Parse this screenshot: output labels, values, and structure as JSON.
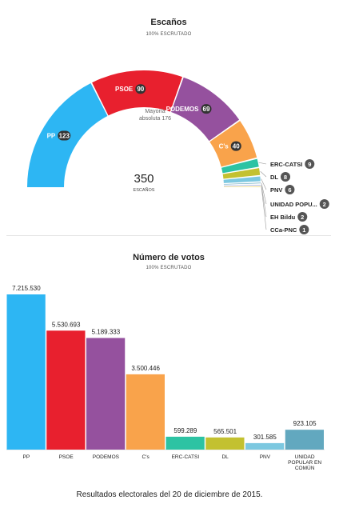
{
  "colors": {
    "PP": "#2db6f3",
    "PSOE": "#e8202e",
    "PODEMOS": "#95519e",
    "Cs": "#f9a34b",
    "ERC-CATSI": "#2dc3a3",
    "DL": "#c3c130",
    "PNV": "#7cc8e0",
    "UNIDAD POPULAR": "#62a8bf",
    "EH Bildu": "#9aa8d4",
    "CCa-PNC": "#e6c433",
    "badge": "#333333"
  },
  "chart_data": [
    {
      "type": "pie",
      "subtype": "parliament-hemicycle",
      "title": "Escaños",
      "subtitle": "100% ESCRUTADO",
      "center_value": "350",
      "center_label": "ESCAÑOS",
      "majority_label": [
        "Mayoría",
        "absoluta 176"
      ],
      "slices": [
        {
          "label": "PP",
          "value": 123,
          "color_key": "PP"
        },
        {
          "label": "PSOE",
          "value": 90,
          "color_key": "PSOE"
        },
        {
          "label": "PODEMOS",
          "value": 69,
          "color_key": "PODEMOS"
        },
        {
          "label": "C's",
          "value": 40,
          "color_key": "Cs"
        },
        {
          "label": "ERC-CATSI",
          "value": 9,
          "color_key": "ERC-CATSI"
        },
        {
          "label": "DL",
          "value": 8,
          "color_key": "DL"
        },
        {
          "label": "PNV",
          "value": 6,
          "color_key": "PNV"
        },
        {
          "label": "UNIDAD POPU...",
          "value": 2,
          "color_key": "UNIDAD POPULAR"
        },
        {
          "label": "EH Bildu",
          "value": 2,
          "color_key": "EH Bildu"
        },
        {
          "label": "CCa-PNC",
          "value": 1,
          "color_key": "CCa-PNC"
        }
      ]
    },
    {
      "type": "bar",
      "title": "Número de votos",
      "subtitle": "100% ESCRUTADO",
      "categories": [
        "PP",
        "PSOE",
        "PODEMOS",
        "C's",
        "ERC-CATSI",
        "DL",
        "PNV",
        "UNIDAD POPULAR EN COMÚN"
      ],
      "category_lines": [
        [
          "PP"
        ],
        [
          "PSOE"
        ],
        [
          "PODEMOS"
        ],
        [
          "C's"
        ],
        [
          "ERC-CATSI"
        ],
        [
          "DL"
        ],
        [
          "PNV"
        ],
        [
          "UNIDAD",
          "POPULAR EN",
          "COMÚN"
        ]
      ],
      "color_keys": [
        "PP",
        "PSOE",
        "PODEMOS",
        "Cs",
        "ERC-CATSI",
        "DL",
        "PNV",
        "UNIDAD POPULAR"
      ],
      "values": [
        7215530,
        5530693,
        5189333,
        3500446,
        599289,
        565501,
        301585,
        923105
      ],
      "value_labels": [
        "7.215.530",
        "5.530.693",
        "5.189.333",
        "3.500.446",
        "599.289",
        "565.501",
        "301.585",
        "923.105"
      ],
      "ylim": [
        0,
        7215530
      ]
    }
  ],
  "caption": "Resultados electorales del 20 de diciembre de 2015."
}
